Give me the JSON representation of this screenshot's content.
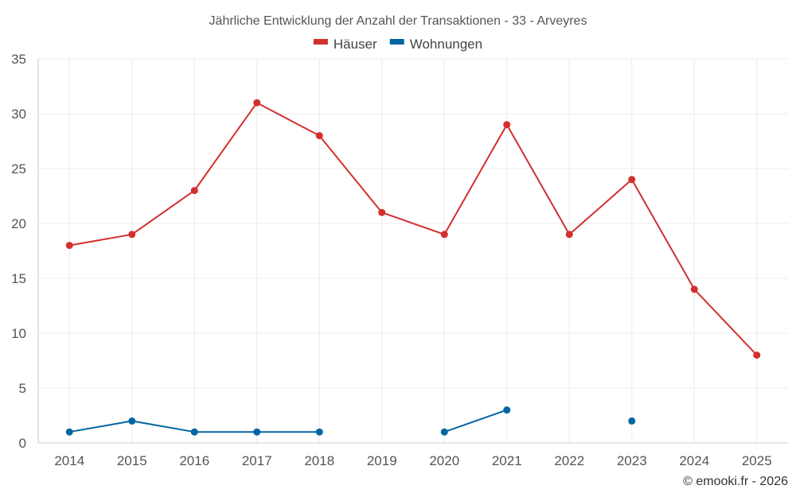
{
  "chart_data": {
    "type": "line",
    "title": "Jährliche Entwicklung der Anzahl der Transaktionen - 33 - Arveyres",
    "categories": [
      "2014",
      "2015",
      "2016",
      "2017",
      "2018",
      "2019",
      "2020",
      "2021",
      "2022",
      "2023",
      "2024",
      "2025"
    ],
    "series": [
      {
        "name": "Häuser",
        "color": "#d32f2f",
        "values": [
          18,
          19,
          23,
          31,
          28,
          21,
          19,
          29,
          19,
          24,
          14,
          8
        ]
      },
      {
        "name": "Wohnungen",
        "color": "#0066a1",
        "values": [
          1,
          2,
          1,
          1,
          1,
          null,
          1,
          3,
          null,
          2,
          null,
          null
        ]
      }
    ],
    "ylim": [
      0,
      35
    ],
    "yticks": [
      0,
      5,
      10,
      15,
      20,
      25,
      30,
      35
    ],
    "xlabel": "",
    "ylabel": "",
    "grid": true,
    "legend": "top-center"
  },
  "credit": "© emooki.fr - 2026"
}
